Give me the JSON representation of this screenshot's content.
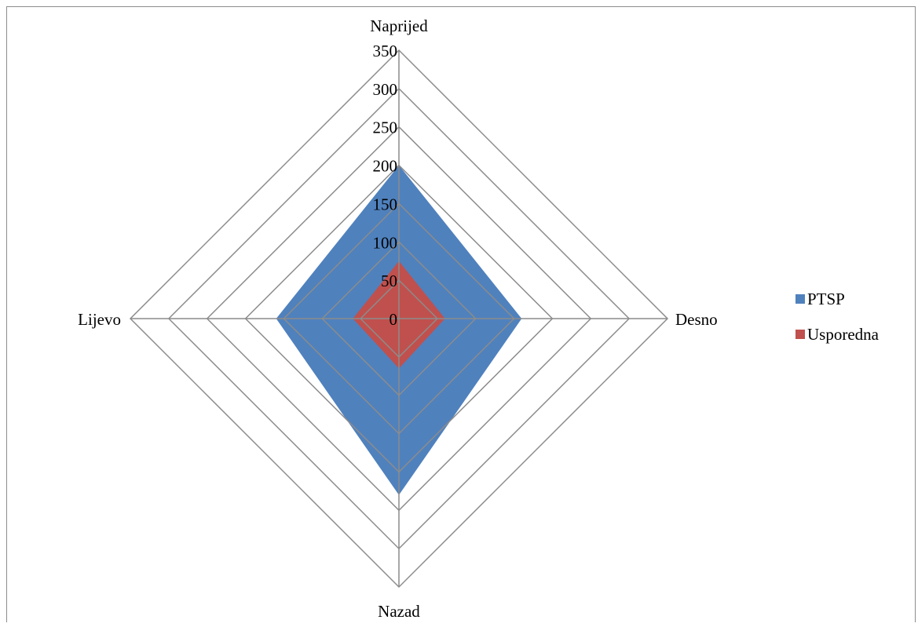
{
  "chart_data": {
    "type": "radar",
    "categories": [
      "Naprijed",
      "Desno",
      "Nazad",
      "Lijevo"
    ],
    "series": [
      {
        "name": "PTSP",
        "values": [
          200,
          160,
          230,
          160
        ],
        "color": "#4f81bd"
      },
      {
        "name": "Usporedna",
        "values": [
          75,
          60,
          65,
          60
        ],
        "color": "#c0504d"
      }
    ],
    "rlim": [
      0,
      350
    ],
    "ticks": [
      0,
      50,
      100,
      150,
      200,
      250,
      300,
      350
    ],
    "tick_labels": [
      "0",
      "50",
      "100",
      "150",
      "200",
      "250",
      "300",
      "350"
    ],
    "legend_position": "right",
    "grid": true,
    "grid_color": "#8c8c8c"
  }
}
